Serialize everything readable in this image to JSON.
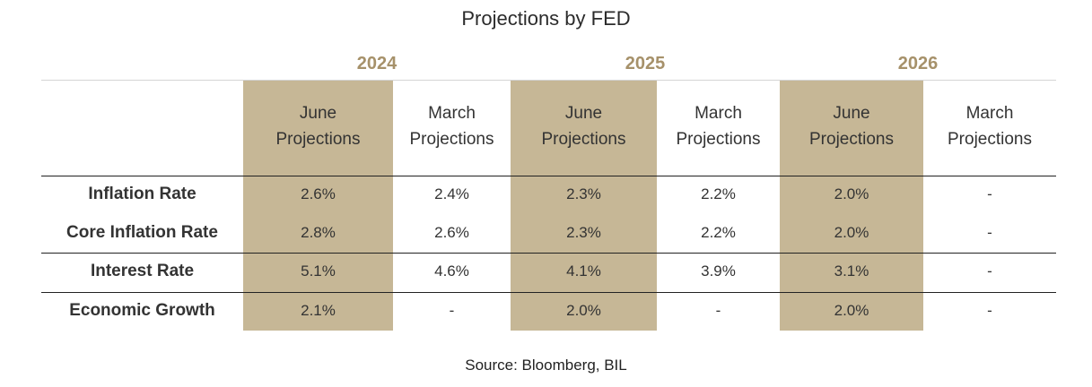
{
  "chart_data": {
    "type": "table",
    "title": "Projections by FED",
    "years": [
      "2024",
      "2025",
      "2026"
    ],
    "columns": [
      {
        "year": "2024",
        "line1": "June",
        "line2": "Projections",
        "highlight": true
      },
      {
        "year": "2024",
        "line1": "March",
        "line2": "Projections",
        "highlight": false
      },
      {
        "year": "2025",
        "line1": "June",
        "line2": "Projections",
        "highlight": true
      },
      {
        "year": "2025",
        "line1": "March",
        "line2": "Projections",
        "highlight": false
      },
      {
        "year": "2026",
        "line1": "June",
        "line2": "Projections",
        "highlight": true
      },
      {
        "year": "2026",
        "line1": "March",
        "line2": "Projections",
        "highlight": false
      }
    ],
    "rows": [
      {
        "label": "Inflation Rate",
        "values": [
          "2.6%",
          "2.4%",
          "2.3%",
          "2.2%",
          "2.0%",
          "-"
        ]
      },
      {
        "label": "Core Inflation Rate",
        "values": [
          "2.8%",
          "2.6%",
          "2.3%",
          "2.2%",
          "2.0%",
          "-"
        ]
      },
      {
        "label": "Interest Rate",
        "values": [
          "5.1%",
          "4.6%",
          "4.1%",
          "3.9%",
          "3.1%",
          "-"
        ]
      },
      {
        "label": "Economic Growth",
        "values": [
          "2.1%",
          "-",
          "2.0%",
          "-",
          "2.0%",
          "-"
        ]
      }
    ],
    "source": "Source: Bloomberg, BIL",
    "colors": {
      "highlight": "#c6b796",
      "year_text": "#a6916a"
    }
  }
}
